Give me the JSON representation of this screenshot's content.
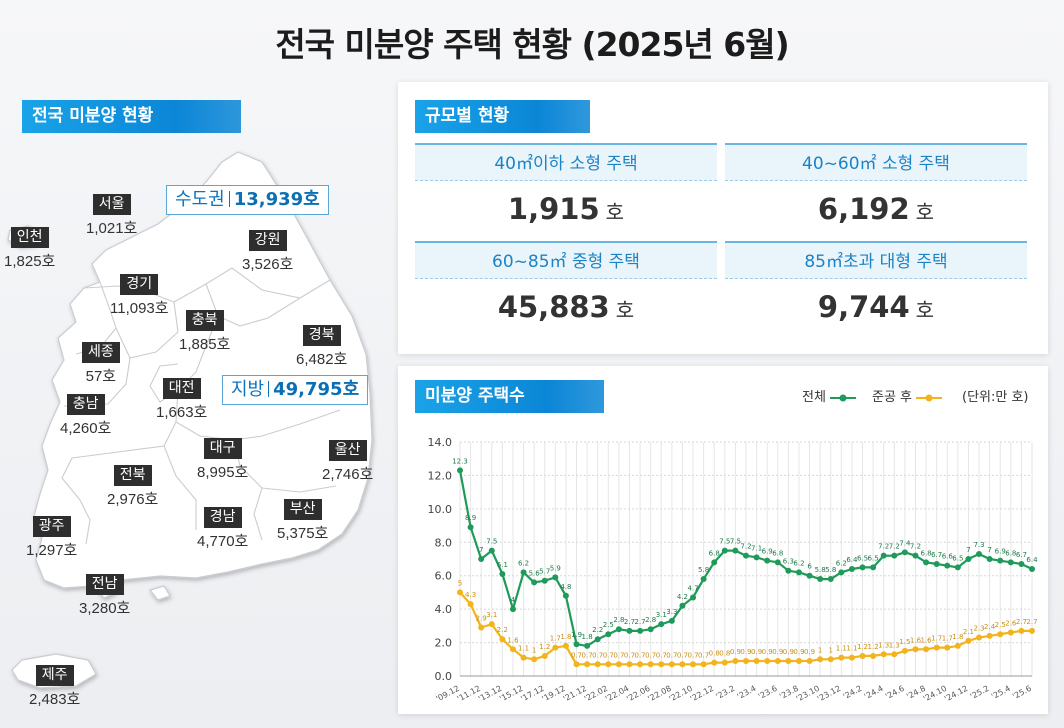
{
  "title": "전국 미분양 주택 현황  (2025년 6월)",
  "map_section": {
    "label": "전국 미분양 현황",
    "capital_area": {
      "label": "수도권",
      "value": "13,939호"
    },
    "provinces_area": {
      "label": "지방",
      "value": "49,795호"
    },
    "regions": [
      {
        "name": "서울",
        "value": "1,021호"
      },
      {
        "name": "인천",
        "value": "1,825호"
      },
      {
        "name": "경기",
        "value": "11,093호"
      },
      {
        "name": "강원",
        "value": "3,526호"
      },
      {
        "name": "충북",
        "value": "1,885호"
      },
      {
        "name": "세종",
        "value": "57호"
      },
      {
        "name": "경북",
        "value": "6,482호"
      },
      {
        "name": "충남",
        "value": "4,260호"
      },
      {
        "name": "대전",
        "value": "1,663호"
      },
      {
        "name": "대구",
        "value": "8,995호"
      },
      {
        "name": "울산",
        "value": "2,746호"
      },
      {
        "name": "전북",
        "value": "2,976호"
      },
      {
        "name": "부산",
        "value": "5,375호"
      },
      {
        "name": "경남",
        "value": "4,770호"
      },
      {
        "name": "광주",
        "value": "1,297호"
      },
      {
        "name": "전남",
        "value": "3,280호"
      },
      {
        "name": "제주",
        "value": "2,483호"
      }
    ]
  },
  "size_section": {
    "label": "규모별 현황",
    "items": [
      {
        "label": "40㎡이하 소형 주택",
        "value": "1,915",
        "unit": "호"
      },
      {
        "label": "40~60㎡ 소형 주택",
        "value": "6,192",
        "unit": "호"
      },
      {
        "label": "60~85㎡ 중형 주택",
        "value": "45,883",
        "unit": "호"
      },
      {
        "label": "85㎡초과 대형 주택",
        "value": "9,744",
        "unit": "호"
      }
    ]
  },
  "chart_section": {
    "label": "미분양 주택수",
    "legend_total": "전체",
    "legend_completed": "준공 후",
    "unit_note": "(단위:만 호)",
    "colors": {
      "total": "#1f9a5a",
      "completed": "#f2b31c"
    }
  },
  "chart_data": {
    "type": "line",
    "ylim": [
      0,
      14
    ],
    "yticks": [
      "0.0",
      "2.0",
      "4.0",
      "6.0",
      "8.0",
      "10.0",
      "12.0",
      "14.0"
    ],
    "xtick_labels": [
      "'09.12",
      "'11.12",
      "'13.12",
      "'15.12",
      "'17.12",
      "'19.12",
      "'21.12",
      "'22.02",
      "'22.04",
      "'22.06",
      "'22.08",
      "'22.10",
      "'22.12",
      "'23.2",
      "'23.4",
      "'23.6",
      "'23.8",
      "'23.10",
      "'23.12",
      "'24.2",
      "'24.4",
      "'24.6",
      "'24.8",
      "'24.10",
      "'24.12",
      "'25.2",
      "'25.4",
      "'25.6"
    ],
    "series": [
      {
        "name": "전체",
        "values": [
          12.3,
          8.9,
          7.0,
          7.5,
          6.1,
          4.0,
          6.2,
          5.6,
          5.7,
          5.9,
          4.8,
          1.9,
          1.8,
          2.2,
          2.5,
          2.8,
          2.7,
          2.7,
          2.8,
          3.1,
          3.3,
          4.2,
          4.7,
          5.8,
          6.8,
          7.5,
          7.5,
          7.2,
          7.1,
          6.9,
          6.8,
          6.3,
          6.2,
          6.0,
          5.8,
          5.8,
          6.2,
          6.4,
          6.5,
          6.5,
          7.2,
          7.2,
          7.4,
          7.2,
          6.8,
          6.7,
          6.6,
          6.5,
          7.0,
          7.3,
          7.0,
          6.9,
          6.8,
          6.7,
          6.4
        ]
      },
      {
        "name": "준공 후",
        "values": [
          5.0,
          4.3,
          2.9,
          3.1,
          2.2,
          1.6,
          1.1,
          1.0,
          1.2,
          1.7,
          1.8,
          0.7,
          0.7,
          0.7,
          0.7,
          0.7,
          0.7,
          0.7,
          0.7,
          0.7,
          0.7,
          0.7,
          0.7,
          0.7,
          0.8,
          0.8,
          0.9,
          0.9,
          0.9,
          0.9,
          0.9,
          0.9,
          0.9,
          0.9,
          1.0,
          1.0,
          1.1,
          1.1,
          1.2,
          1.2,
          1.3,
          1.3,
          1.5,
          1.6,
          1.6,
          1.7,
          1.7,
          1.8,
          2.1,
          2.3,
          2.4,
          2.5,
          2.6,
          2.7,
          2.7
        ]
      }
    ]
  }
}
